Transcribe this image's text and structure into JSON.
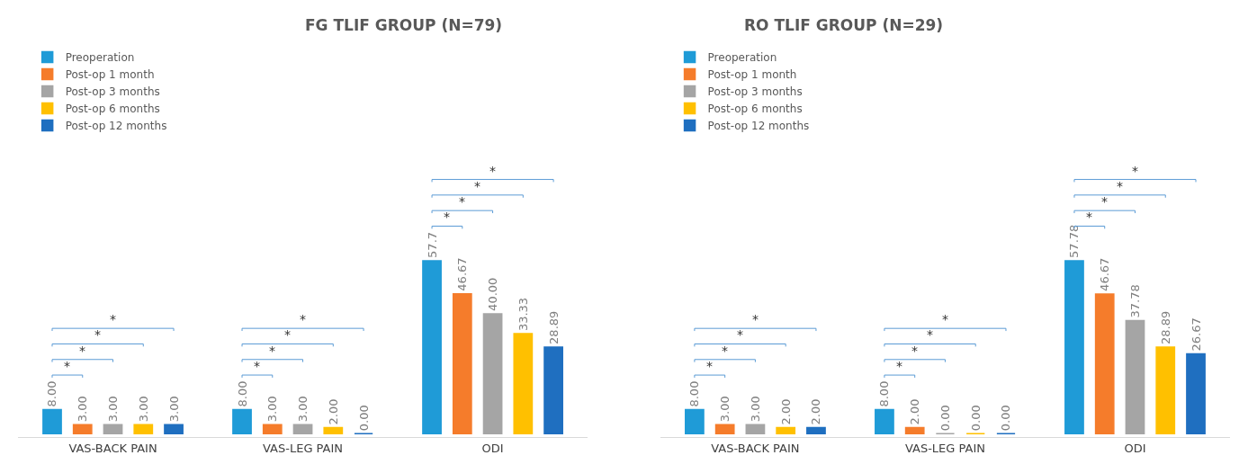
{
  "chart_data": [
    {
      "type": "bar",
      "title": "FG TLIF GROUP (N=79)",
      "categories": [
        "VAS-BACK PAIN",
        "VAS-LEG PAIN",
        "ODI"
      ],
      "legend": "top",
      "series": [
        {
          "name": "Preoperation",
          "color": "#1f9bd7",
          "values": [
            8.0,
            8.0,
            57.7
          ],
          "value_labels": [
            "8.00",
            "8.00",
            "57.7"
          ]
        },
        {
          "name": "Post-op 1 month",
          "color": "#f57c2b",
          "values": [
            3.0,
            3.0,
            46.67
          ],
          "value_labels": [
            "3.00",
            "3.00",
            "46.67"
          ]
        },
        {
          "name": "Post-op 3 months",
          "color": "#a5a5a5",
          "values": [
            3.0,
            3.0,
            40.0
          ],
          "value_labels": [
            "3.00",
            "3.00",
            "40.00"
          ]
        },
        {
          "name": "Post-op 6 months",
          "color": "#ffc000",
          "values": [
            3.0,
            2.0,
            33.33
          ],
          "value_labels": [
            "3.00",
            "2.00",
            "33.33"
          ]
        },
        {
          "name": "Post-op 12 months",
          "color": "#1f6fc0",
          "values": [
            3.0,
            0.0,
            28.89
          ],
          "value_labels": [
            "3.00",
            "0.00",
            "28.89"
          ]
        }
      ],
      "annotations": [
        "*",
        "*",
        "*",
        "*",
        "*",
        "*",
        "*",
        "*",
        "*",
        "*",
        "*",
        "*"
      ]
    },
    {
      "type": "bar",
      "title": "RO TLIF GROUP (N=29)",
      "categories": [
        "VAS-BACK PAIN",
        "VAS-LEG PAIN",
        "ODI"
      ],
      "legend": "top",
      "series": [
        {
          "name": "Preoperation",
          "color": "#1f9bd7",
          "values": [
            8.0,
            8.0,
            57.78
          ],
          "value_labels": [
            "8.00",
            "8.00",
            "57.78"
          ]
        },
        {
          "name": "Post-op 1 month",
          "color": "#f57c2b",
          "values": [
            3.0,
            2.0,
            46.67
          ],
          "value_labels": [
            "3.00",
            "2.00",
            "46.67"
          ]
        },
        {
          "name": "Post-op 3 months",
          "color": "#a5a5a5",
          "values": [
            3.0,
            0.0,
            37.78
          ],
          "value_labels": [
            "3.00",
            "0.00",
            "37.78"
          ]
        },
        {
          "name": "Post-op 6 months",
          "color": "#ffc000",
          "values": [
            2.0,
            0.0,
            28.89
          ],
          "value_labels": [
            "2.00",
            "0.00",
            "28.89"
          ]
        },
        {
          "name": "Post-op 12 months",
          "color": "#1f6fc0",
          "values": [
            2.0,
            0.0,
            26.67
          ],
          "value_labels": [
            "2.00",
            "0.00",
            "26.67"
          ]
        }
      ],
      "annotations": [
        "*",
        "*",
        "*",
        "*",
        "*",
        "*",
        "*",
        "*",
        "*",
        "*",
        "*",
        "*"
      ]
    }
  ]
}
